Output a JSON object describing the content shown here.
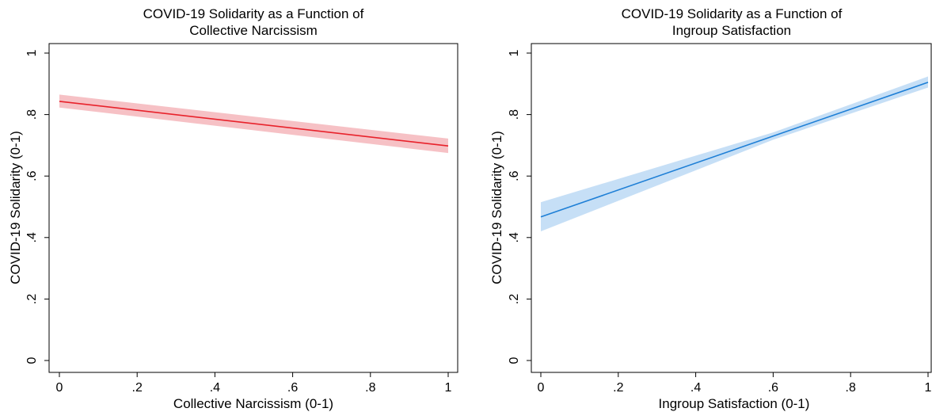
{
  "chart_data": [
    {
      "type": "line",
      "title": "COVID-19 Solidarity as a Function of",
      "subtitle": "Collective Narcissism",
      "xlabel": "Collective Narcissism (0-1)",
      "ylabel": "COVID-19 Solidarity (0-1)",
      "xlim": [
        0,
        1
      ],
      "ylim": [
        0,
        1
      ],
      "x_ticks": [
        "0",
        ".2",
        ".4",
        ".6",
        ".8",
        "1"
      ],
      "y_ticks": [
        "0",
        ".2",
        ".4",
        ".6",
        ".8",
        "1"
      ],
      "grid": false,
      "line_color": "#e8222b",
      "band_color": "#f4b6bb",
      "series": [
        {
          "x": [
            0,
            1
          ],
          "y": [
            0.843,
            0.698
          ],
          "ci_lower": [
            0.823,
            0.675
          ],
          "ci_upper": [
            0.865,
            0.722
          ]
        }
      ]
    },
    {
      "type": "line",
      "title": "COVID-19 Solidarity as a Function of",
      "subtitle": "Ingroup Satisfaction",
      "xlabel": "Ingroup Satisfaction (0-1)",
      "ylabel": "COVID-19 Solidarity (0-1)",
      "xlim": [
        0,
        1
      ],
      "ylim": [
        0,
        1
      ],
      "x_ticks": [
        "0",
        ".2",
        ".4",
        ".6",
        ".8",
        "1"
      ],
      "y_ticks": [
        "0",
        ".2",
        ".4",
        ".6",
        ".8",
        "1"
      ],
      "grid": false,
      "line_color": "#1e7fd6",
      "band_color": "#bcd9f5",
      "series": [
        {
          "x": [
            0,
            0.6,
            1
          ],
          "y": [
            0.467,
            0.73,
            0.905
          ],
          "ci_lower": [
            0.42,
            0.718,
            0.888
          ],
          "ci_upper": [
            0.515,
            0.742,
            0.924
          ]
        }
      ]
    }
  ]
}
